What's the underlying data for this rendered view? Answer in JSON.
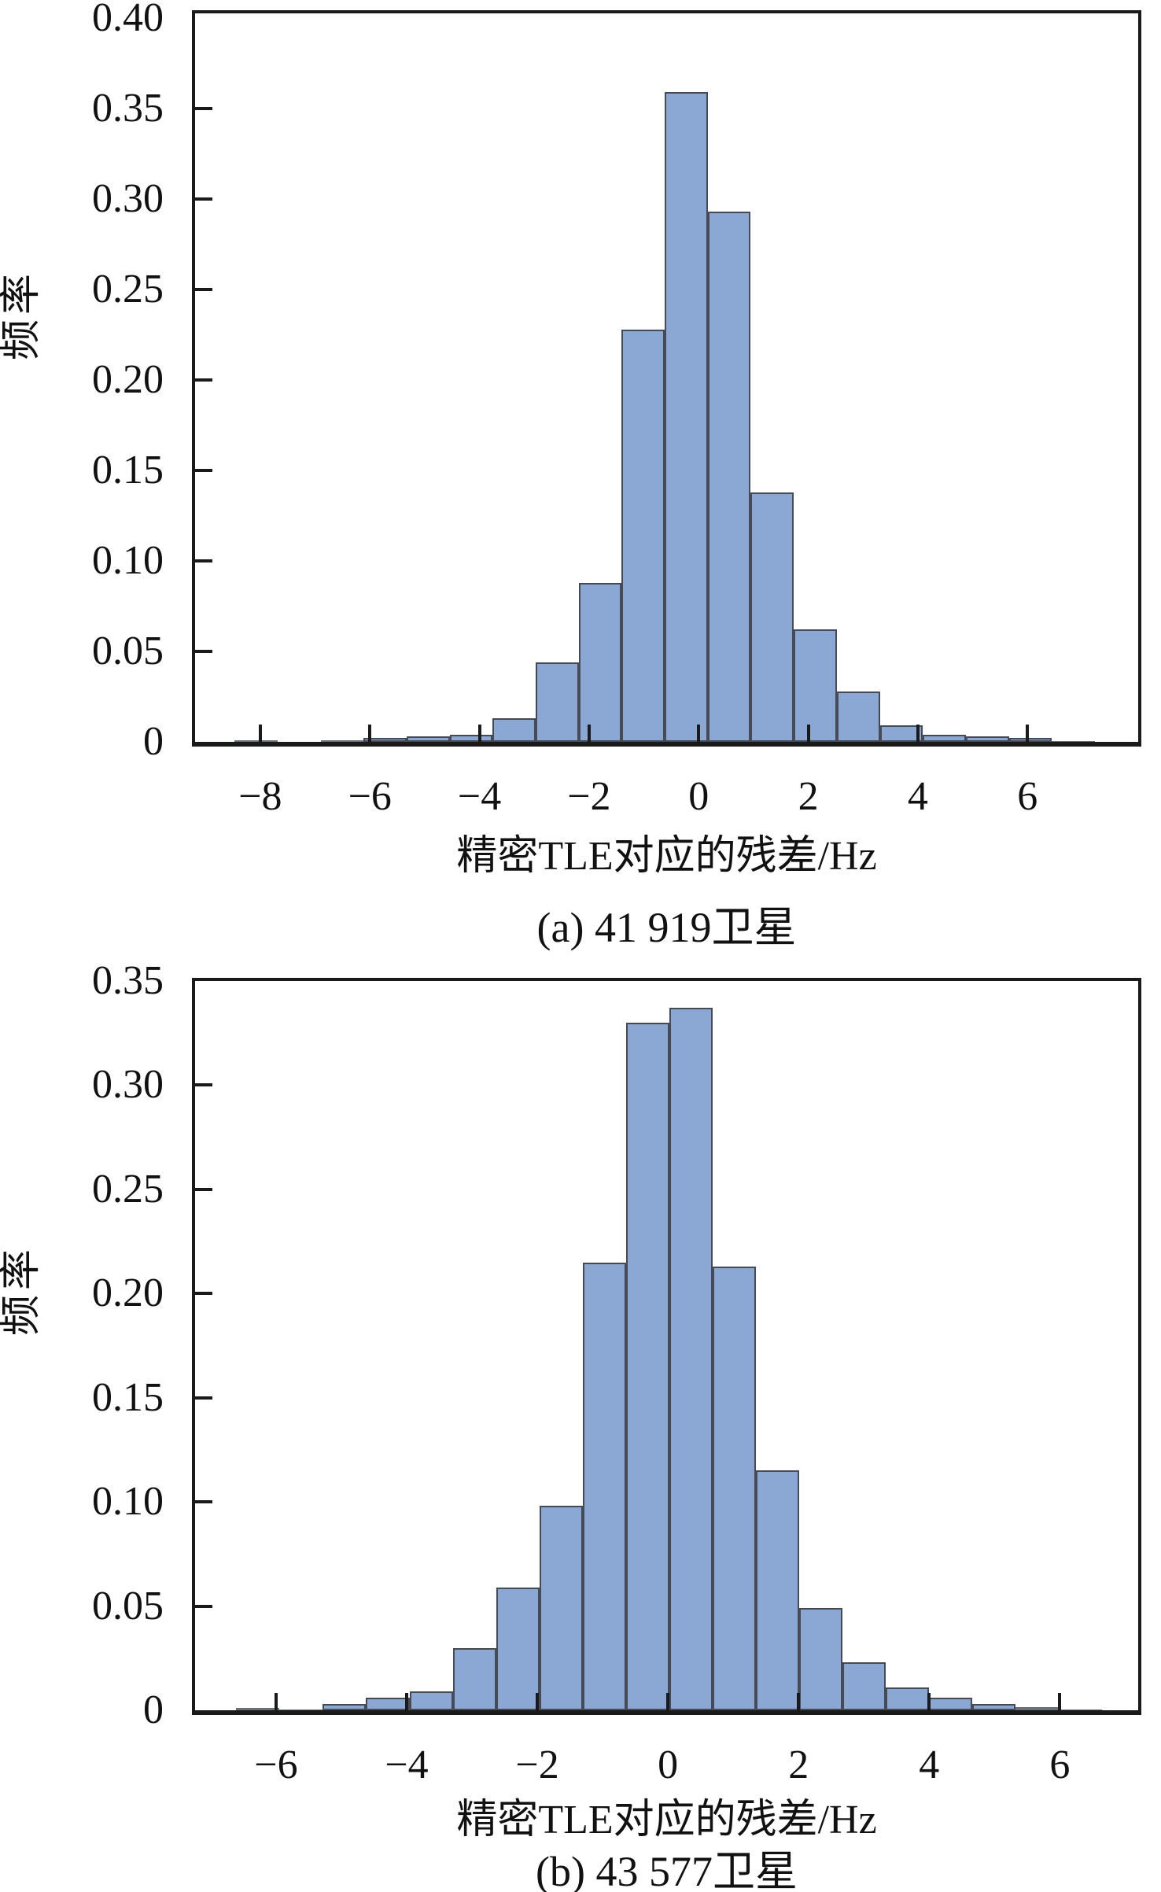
{
  "figure": {
    "background": "#ffffff",
    "bar_fill": "#8ba7d4",
    "bar_edge": "#454a54",
    "axis_color": "#1a1a1a"
  },
  "chart_data": [
    {
      "type": "bar",
      "subtype": "histogram",
      "panel": "a",
      "caption": "(a) 41 919卫星",
      "xlabel": "精密TLE对应的残差/Hz",
      "ylabel": "频率",
      "xlim": [
        -9.19,
        8.02
      ],
      "ylim": [
        0,
        0.4026
      ],
      "grid": false,
      "legend_position": "none",
      "x_tick_values": [
        -8,
        -6,
        -4,
        -2,
        0,
        2,
        4,
        6
      ],
      "x_tick_labels": [
        "−8",
        "−6",
        "−4",
        "−2",
        "0",
        "2",
        "4",
        "6"
      ],
      "y_tick_values": [
        0,
        0.05,
        0.1,
        0.15,
        0.2,
        0.25,
        0.3,
        0.35,
        0.4
      ],
      "y_tick_labels": [
        "0",
        "0.05",
        "0.10",
        "0.15",
        "0.20",
        "0.25",
        "0.30",
        "0.35",
        "0.40"
      ],
      "bin_start": -8.47,
      "bin_width": 0.785,
      "frequencies": [
        0.001,
        0,
        0.001,
        0.002,
        0.003,
        0.004,
        0.013,
        0.044,
        0.088,
        0.228,
        0.359,
        0.293,
        0.138,
        0.062,
        0.028,
        0.009,
        0.004,
        0.003,
        0.002,
        0.0005
      ]
    },
    {
      "type": "bar",
      "subtype": "histogram",
      "panel": "b",
      "caption": "(b) 43 577卫星",
      "xlabel": "精密TLE对应的残差/Hz",
      "ylabel": "频率",
      "xlim": [
        -7.24,
        7.2
      ],
      "ylim": [
        0,
        0.35
      ],
      "grid": false,
      "legend_position": "none",
      "x_tick_values": [
        -6,
        -4,
        -2,
        0,
        2,
        4,
        6
      ],
      "x_tick_labels": [
        "−6",
        "−4",
        "−2",
        "0",
        "2",
        "4",
        "6"
      ],
      "y_tick_values": [
        0,
        0.05,
        0.1,
        0.15,
        0.2,
        0.25,
        0.3,
        0.35
      ],
      "y_tick_labels": [
        "0",
        "0.05",
        "0.10",
        "0.15",
        "0.20",
        "0.25",
        "0.30",
        "0.35"
      ],
      "bin_start": -6.61,
      "bin_width": 0.663,
      "frequencies": [
        0.001,
        0.0005,
        0.003,
        0.006,
        0.009,
        0.03,
        0.059,
        0.098,
        0.215,
        0.33,
        0.337,
        0.213,
        0.115,
        0.049,
        0.023,
        0.011,
        0.006,
        0.003,
        0.0015,
        0.0005
      ]
    }
  ]
}
